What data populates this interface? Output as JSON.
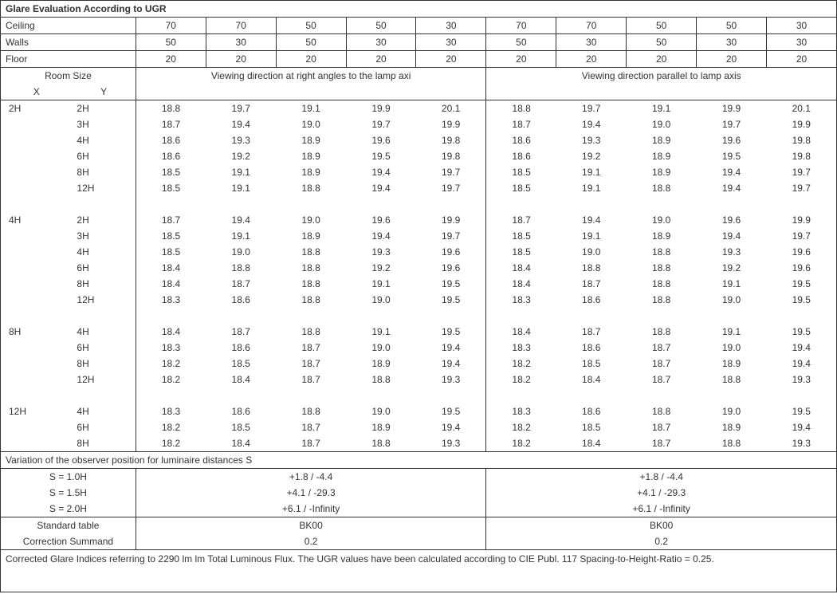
{
  "title": "Glare Evaluation According to UGR",
  "header_rows": [
    {
      "label": "Ceiling",
      "vals": [
        "70",
        "70",
        "50",
        "50",
        "30",
        "70",
        "70",
        "50",
        "50",
        "30"
      ]
    },
    {
      "label": "Walls",
      "vals": [
        "50",
        "30",
        "50",
        "30",
        "30",
        "50",
        "30",
        "50",
        "30",
        "30"
      ]
    },
    {
      "label": "Floor",
      "vals": [
        "20",
        "20",
        "20",
        "20",
        "20",
        "20",
        "20",
        "20",
        "20",
        "20"
      ]
    }
  ],
  "room_head": {
    "label": "Room Size",
    "x": "X",
    "y": "Y"
  },
  "dir_left": "Viewing direction at right angles to the lamp axi",
  "dir_right": "Viewing direction parallel to lamp axis",
  "groups": [
    {
      "x": "2H",
      "rows": [
        {
          "y": "2H",
          "v": [
            "18.8",
            "19.7",
            "19.1",
            "19.9",
            "20.1",
            "18.8",
            "19.7",
            "19.1",
            "19.9",
            "20.1"
          ]
        },
        {
          "y": "3H",
          "v": [
            "18.7",
            "19.4",
            "19.0",
            "19.7",
            "19.9",
            "18.7",
            "19.4",
            "19.0",
            "19.7",
            "19.9"
          ]
        },
        {
          "y": "4H",
          "v": [
            "18.6",
            "19.3",
            "18.9",
            "19.6",
            "19.8",
            "18.6",
            "19.3",
            "18.9",
            "19.6",
            "19.8"
          ]
        },
        {
          "y": "6H",
          "v": [
            "18.6",
            "19.2",
            "18.9",
            "19.5",
            "19.8",
            "18.6",
            "19.2",
            "18.9",
            "19.5",
            "19.8"
          ]
        },
        {
          "y": "8H",
          "v": [
            "18.5",
            "19.1",
            "18.9",
            "19.4",
            "19.7",
            "18.5",
            "19.1",
            "18.9",
            "19.4",
            "19.7"
          ]
        },
        {
          "y": "12H",
          "v": [
            "18.5",
            "19.1",
            "18.8",
            "19.4",
            "19.7",
            "18.5",
            "19.1",
            "18.8",
            "19.4",
            "19.7"
          ]
        }
      ]
    },
    {
      "x": "4H",
      "rows": [
        {
          "y": "2H",
          "v": [
            "18.7",
            "19.4",
            "19.0",
            "19.6",
            "19.9",
            "18.7",
            "19.4",
            "19.0",
            "19.6",
            "19.9"
          ]
        },
        {
          "y": "3H",
          "v": [
            "18.5",
            "19.1",
            "18.9",
            "19.4",
            "19.7",
            "18.5",
            "19.1",
            "18.9",
            "19.4",
            "19.7"
          ]
        },
        {
          "y": "4H",
          "v": [
            "18.5",
            "19.0",
            "18.8",
            "19.3",
            "19.6",
            "18.5",
            "19.0",
            "18.8",
            "19.3",
            "19.6"
          ]
        },
        {
          "y": "6H",
          "v": [
            "18.4",
            "18.8",
            "18.8",
            "19.2",
            "19.6",
            "18.4",
            "18.8",
            "18.8",
            "19.2",
            "19.6"
          ]
        },
        {
          "y": "8H",
          "v": [
            "18.4",
            "18.7",
            "18.8",
            "19.1",
            "19.5",
            "18.4",
            "18.7",
            "18.8",
            "19.1",
            "19.5"
          ]
        },
        {
          "y": "12H",
          "v": [
            "18.3",
            "18.6",
            "18.8",
            "19.0",
            "19.5",
            "18.3",
            "18.6",
            "18.8",
            "19.0",
            "19.5"
          ]
        }
      ]
    },
    {
      "x": "8H",
      "rows": [
        {
          "y": "4H",
          "v": [
            "18.4",
            "18.7",
            "18.8",
            "19.1",
            "19.5",
            "18.4",
            "18.7",
            "18.8",
            "19.1",
            "19.5"
          ]
        },
        {
          "y": "6H",
          "v": [
            "18.3",
            "18.6",
            "18.7",
            "19.0",
            "19.4",
            "18.3",
            "18.6",
            "18.7",
            "19.0",
            "19.4"
          ]
        },
        {
          "y": "8H",
          "v": [
            "18.2",
            "18.5",
            "18.7",
            "18.9",
            "19.4",
            "18.2",
            "18.5",
            "18.7",
            "18.9",
            "19.4"
          ]
        },
        {
          "y": "12H",
          "v": [
            "18.2",
            "18.4",
            "18.7",
            "18.8",
            "19.3",
            "18.2",
            "18.4",
            "18.7",
            "18.8",
            "19.3"
          ]
        }
      ]
    },
    {
      "x": "12H",
      "rows": [
        {
          "y": "4H",
          "v": [
            "18.3",
            "18.6",
            "18.8",
            "19.0",
            "19.5",
            "18.3",
            "18.6",
            "18.8",
            "19.0",
            "19.5"
          ]
        },
        {
          "y": "6H",
          "v": [
            "18.2",
            "18.5",
            "18.7",
            "18.9",
            "19.4",
            "18.2",
            "18.5",
            "18.7",
            "18.9",
            "19.4"
          ]
        },
        {
          "y": "8H",
          "v": [
            "18.2",
            "18.4",
            "18.7",
            "18.8",
            "19.3",
            "18.2",
            "18.4",
            "18.7",
            "18.8",
            "19.3"
          ]
        }
      ]
    }
  ],
  "variation_title": "Variation of the observer position for luminaire distances S",
  "variation_rows": [
    {
      "label": "S = 1.0H",
      "left": "+1.8 / -4.4",
      "right": "+1.8 / -4.4"
    },
    {
      "label": "S = 1.5H",
      "left": "+4.1 / -29.3",
      "right": "+4.1 / -29.3"
    },
    {
      "label": "S = 2.0H",
      "left": "+6.1 / -Infinity",
      "right": "+6.1 / -Infinity"
    }
  ],
  "std_rows": [
    {
      "label": "Standard table",
      "left": "BK00",
      "right": "BK00"
    },
    {
      "label": "Correction Summand",
      "left": "0.2",
      "right": "0.2"
    }
  ],
  "footnote": "Corrected Glare Indices referring to 2290 lm lm Total Luminous Flux. The UGR values have been calculated according to CIE Publ. 117    Spacing-to-Height-Ratio = 0.25."
}
